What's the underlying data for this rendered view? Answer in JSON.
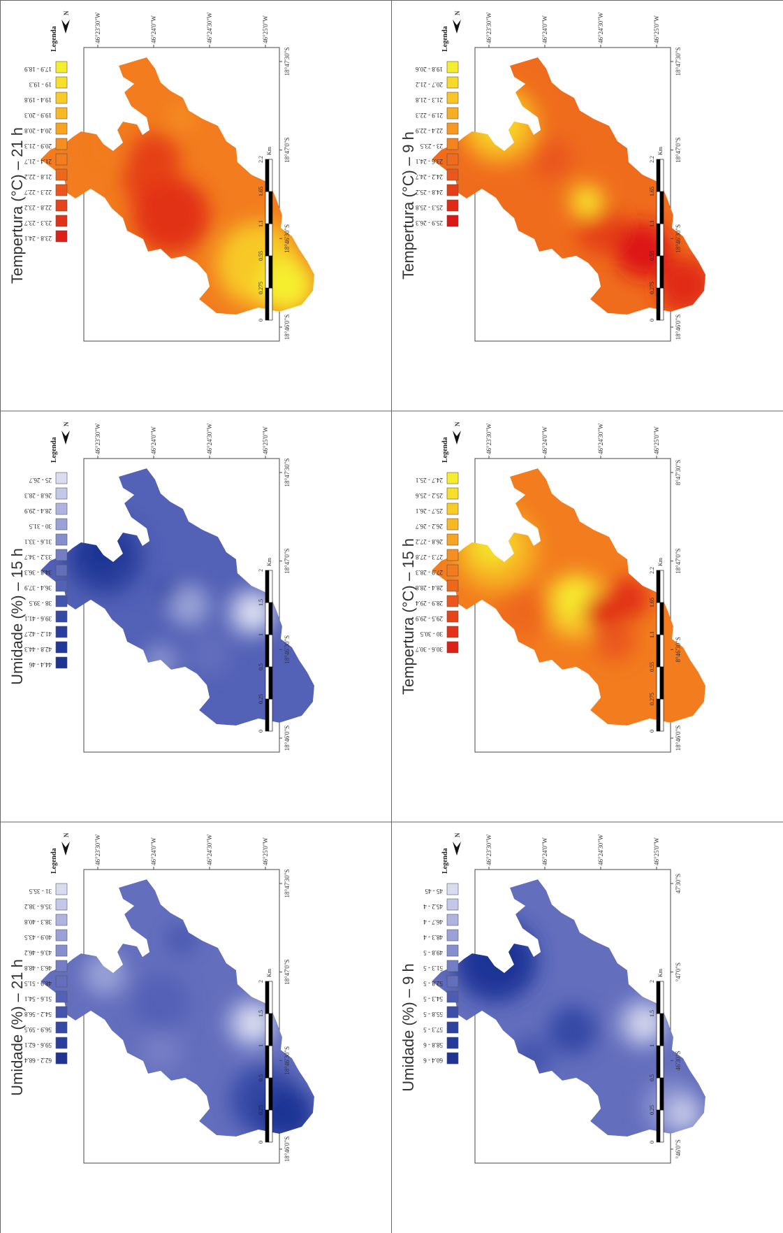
{
  "panels": [
    {
      "key": "temp-21h",
      "title": "Tempertura (°C) – 21 h",
      "theme": "temperature",
      "lat_ticks": [
        "18°46'0\"S",
        "18°46'30\"S",
        "18°47'0\"S",
        "18°47'30\"S"
      ],
      "lon_ticks": [
        "46°25'0\"W",
        "46°24'30\"W",
        "46°24'0\"W",
        "46°23'30\"W"
      ],
      "scale_labels": [
        "0",
        "0.275",
        "0.55",
        "1.1",
        "1.65",
        "2.2"
      ],
      "scale_unit": "Km",
      "north": "N",
      "legend_title": "Legenda",
      "legend": [
        {
          "label": "17.9 - 18.9",
          "color": "#f5ee2e"
        },
        {
          "label": "19 - 19.3",
          "color": "#f7df2a"
        },
        {
          "label": "19.4 - 19.8",
          "color": "#f8cc27"
        },
        {
          "label": "19.9 - 20.3",
          "color": "#f8b824"
        },
        {
          "label": "20.4 - 20.8",
          "color": "#f7a422"
        },
        {
          "label": "20.9 - 21.3",
          "color": "#f59020"
        },
        {
          "label": "21.4 - 21.7",
          "color": "#f27c1e"
        },
        {
          "label": "21.8 - 22.2",
          "color": "#ee681c"
        },
        {
          "label": "22.3 - 22.7",
          "color": "#ea561b"
        },
        {
          "label": "22.8 - 23.2",
          "color": "#e64419"
        },
        {
          "label": "23.3 - 23.7",
          "color": "#e23318"
        },
        {
          "label": "23.8 - 24.1",
          "color": "#de2117"
        }
      ]
    },
    {
      "key": "temp-15h",
      "title": "Tempertura (°C) – 15 h",
      "theme": "temperature",
      "lat_ticks": [
        "18°46'0\"S",
        "8°46'30\"S",
        "18°47'0\"S",
        "8°47'30\"S"
      ],
      "lon_ticks": [
        "46°25'0\"W",
        "46°24'30\"W",
        "46°24'0\"W",
        "46°23'30\"W"
      ],
      "scale_labels": [
        "0",
        "0.275",
        "0.55",
        "1.1",
        "1.65",
        "2.2"
      ],
      "scale_unit": "Km",
      "north": "N",
      "legend_title": "Legenda",
      "legend": [
        {
          "label": "24.7 - 25.1",
          "color": "#f5ee2e"
        },
        {
          "label": "25.2 - 25.6",
          "color": "#f7df2a"
        },
        {
          "label": "25.7 - 26.1",
          "color": "#f8cc27"
        },
        {
          "label": "26.2 - 26.7",
          "color": "#f8b824"
        },
        {
          "label": "26.8 - 27.2",
          "color": "#f7a422"
        },
        {
          "label": "27.3 - 27.8",
          "color": "#f59020"
        },
        {
          "label": "27.9 - 28.3",
          "color": "#f27c1e"
        },
        {
          "label": "28.4 - 28.8",
          "color": "#ee681c"
        },
        {
          "label": "28.9 - 29.4",
          "color": "#ea561b"
        },
        {
          "label": "29.5 - 29.9",
          "color": "#e64419"
        },
        {
          "label": "30 - 30.5",
          "color": "#e23318"
        },
        {
          "label": "30.6 - 30.7",
          "color": "#de2117"
        }
      ]
    },
    {
      "key": "temp-9h",
      "title": "Tempertura (°C) – 9 h",
      "theme": "temperature",
      "lat_ticks": [
        "18°46'0\"S",
        "18°46'30\"S",
        "18°47'0\"S",
        "18°47'30\"S"
      ],
      "lon_ticks": [
        "46°25'0\"W",
        "46°24'30\"W",
        "46°24'0\"W",
        "46°23'30\"W"
      ],
      "scale_labels": [
        "0",
        "0.275",
        "0.55",
        "1.1",
        "1.65",
        "2.2"
      ],
      "scale_unit": "Km",
      "north": "N",
      "legend_title": "Legenda",
      "legend": [
        {
          "label": "19.8 - 20.6",
          "color": "#f5ee2e"
        },
        {
          "label": "20.7 - 21.2",
          "color": "#f7da29"
        },
        {
          "label": "21.3 - 21.8",
          "color": "#f8c426"
        },
        {
          "label": "21.9 - 22.3",
          "color": "#f7ae23"
        },
        {
          "label": "22.4 - 22.9",
          "color": "#f69821"
        },
        {
          "label": "23 - 23.5",
          "color": "#f3821f"
        },
        {
          "label": "23.6 - 24.1",
          "color": "#ef6c1d"
        },
        {
          "label": "24.2 - 24.7",
          "color": "#ea561b"
        },
        {
          "label": "24.8 - 25.2",
          "color": "#e53f19"
        },
        {
          "label": "25.3 - 25.8",
          "color": "#e12918"
        },
        {
          "label": "25.9 - 26.3",
          "color": "#dd1616"
        }
      ]
    },
    {
      "key": "umid-21h",
      "title": "Umidade (%) – 21 h",
      "theme": "humidity",
      "lat_ticks": [
        "18°46'0\"S",
        "18°46'30\"S",
        "18°47'0\"S",
        "18°47'30\"S"
      ],
      "lon_ticks": [
        "46°25'0\"W",
        "46°24'30\"W",
        "46°24'0\"W",
        "46°23'30\"W"
      ],
      "scale_labels": [
        "0",
        "0.25",
        "0.5",
        "1",
        "1.5",
        "2"
      ],
      "scale_unit": "Km",
      "north": "N",
      "legend_title": "Legenda",
      "legend": [
        {
          "label": "31 - 35.5",
          "color": "#d9dcf0"
        },
        {
          "label": "35.6 - 38.2",
          "color": "#c3c8e8"
        },
        {
          "label": "38.3 - 40.8",
          "color": "#aeb4df"
        },
        {
          "label": "40.9 - 43.5",
          "color": "#99a1d6"
        },
        {
          "label": "43.6 - 46.2",
          "color": "#868fce"
        },
        {
          "label": "46.3 - 48.8",
          "color": "#747ec5"
        },
        {
          "label": "48.9 - 51.5",
          "color": "#636ebd"
        },
        {
          "label": "51.6 - 54.1",
          "color": "#5361b6"
        },
        {
          "label": "54.2 - 56.8",
          "color": "#4455ad"
        },
        {
          "label": "56.9 - 59.5",
          "color": "#3649a5"
        },
        {
          "label": "59.6 - 62.1",
          "color": "#2a3f9d"
        },
        {
          "label": "62.2 - 68.4",
          "color": "#1f3594"
        }
      ]
    },
    {
      "key": "umid-15h",
      "title": "Umidade (%) – 15 h",
      "theme": "humidity",
      "lat_ticks": [
        "18°46'0\"S",
        "18°46'30\"S",
        "18°47'0\"S",
        "18°47'30\"S"
      ],
      "lon_ticks": [
        "46°25'0\"W",
        "46°24'30\"W",
        "46°24'0\"W",
        "46°23'30\"W"
      ],
      "scale_labels": [
        "0",
        "0.25",
        "0.5",
        "1",
        "1.5",
        "2"
      ],
      "scale_unit": "Km",
      "north": "N",
      "legend_title": "Legenda",
      "legend": [
        {
          "label": "25 - 26.7",
          "color": "#d9dcf0"
        },
        {
          "label": "26.8 - 28.3",
          "color": "#c3c8e8"
        },
        {
          "label": "28.4 - 29.9",
          "color": "#aeb4df"
        },
        {
          "label": "30 - 31.5",
          "color": "#99a1d6"
        },
        {
          "label": "31.6 - 33.1",
          "color": "#868fce"
        },
        {
          "label": "33.2 - 34.7",
          "color": "#747ec5"
        },
        {
          "label": "34.8 - 36.3",
          "color": "#636ebd"
        },
        {
          "label": "36.4 - 37.9",
          "color": "#5361b6"
        },
        {
          "label": "38 - 39.5",
          "color": "#4455ad"
        },
        {
          "label": "39.6 - 41.1",
          "color": "#3649a5"
        },
        {
          "label": "41.2 - 42.7",
          "color": "#2a3f9d"
        },
        {
          "label": "42.8 - 44.3",
          "color": "#22389a"
        },
        {
          "label": "44.4 - 46",
          "color": "#1f3594"
        }
      ]
    },
    {
      "key": "umid-9h",
      "title": "Umidade (%) – 9 h",
      "theme": "humidity",
      "lat_ticks": [
        "°46'0\"S",
        "46'30\"S",
        "°47'0\"S",
        "47'30\"S"
      ],
      "lon_ticks": [
        "46°25'0\"W",
        "46°24'30\"W",
        "46°24'0\"W",
        "46°23'30\"W"
      ],
      "scale_labels": [
        "0",
        "0.25",
        "0.5",
        "1",
        "1.5",
        "2"
      ],
      "scale_unit": "Km",
      "north": "N",
      "legend_title": "Legenda",
      "legend": [
        {
          "label": "45 - 45",
          "color": "#d9dcf0"
        },
        {
          "label": "45.2 - 4",
          "color": "#c3c8e8"
        },
        {
          "label": "46.7 - 4",
          "color": "#aeb4df"
        },
        {
          "label": "48.3 - 4",
          "color": "#99a1d6"
        },
        {
          "label": "49.8 - 5",
          "color": "#868fce"
        },
        {
          "label": "51.3 - 5",
          "color": "#747ec5"
        },
        {
          "label": "52.8 - 5",
          "color": "#636ebd"
        },
        {
          "label": "54.3 - 5",
          "color": "#4d5cb3"
        },
        {
          "label": "55.8 - 5",
          "color": "#3b4da8"
        },
        {
          "label": "57.3 - 5",
          "color": "#2e429f"
        },
        {
          "label": "58.8 - 6",
          "color": "#253a99"
        },
        {
          "label": "60.4 - 6",
          "color": "#1f3594"
        }
      ]
    }
  ]
}
